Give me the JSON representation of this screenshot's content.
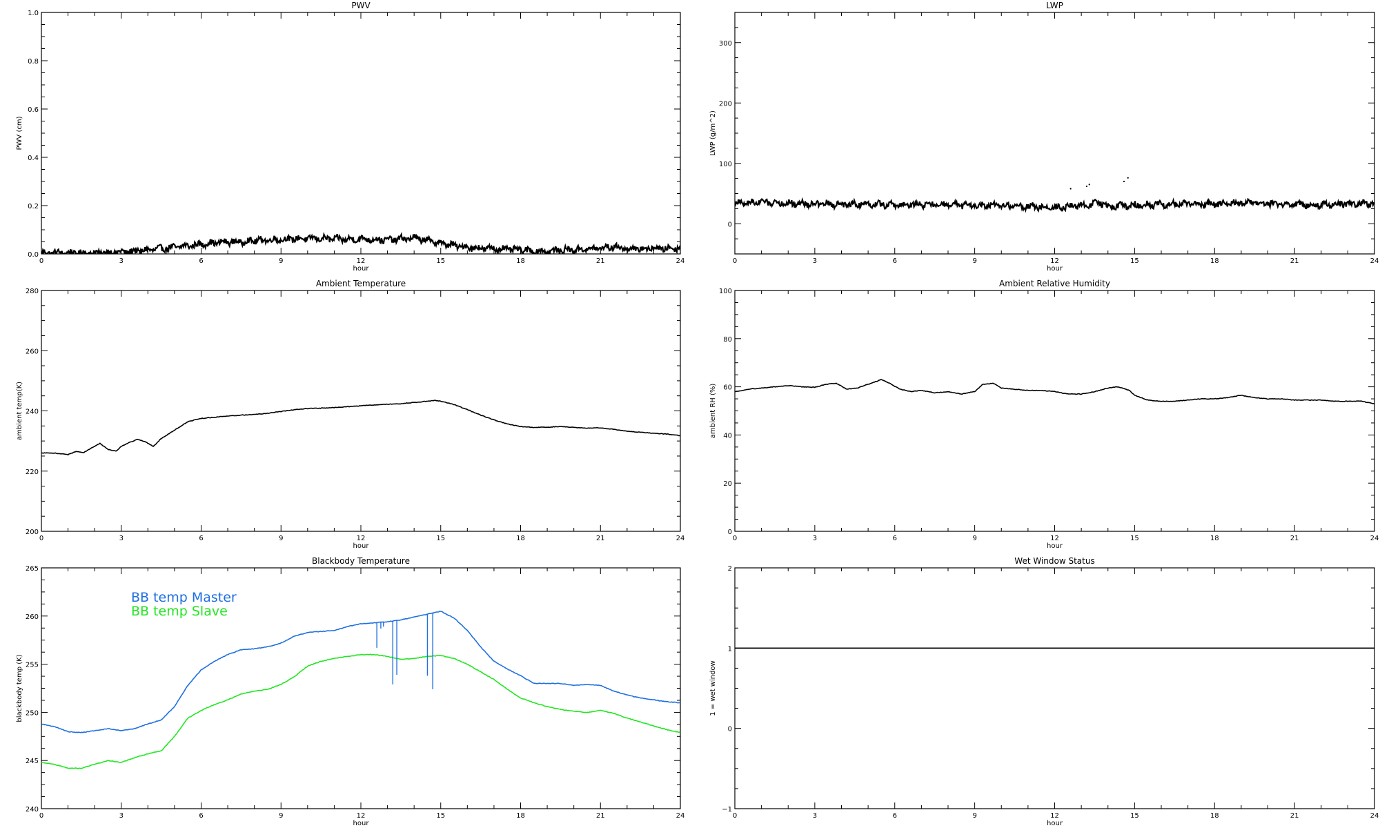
{
  "chart_data": [
    {
      "type": "line",
      "title": "PWV",
      "xlabel": "hour",
      "ylabel": "PWV (cm)",
      "xlim": [
        0,
        24
      ],
      "ylim": [
        0,
        1.0
      ],
      "xticks": [
        0,
        3,
        6,
        9,
        12,
        15,
        18,
        21,
        24
      ],
      "yticks": [
        0.0,
        0.2,
        0.4,
        0.6,
        0.8,
        1.0
      ],
      "ytick_labels": [
        "0.0",
        "0.2",
        "0.4",
        "0.6",
        "0.8",
        "1.0"
      ],
      "style": "noisy",
      "series": [
        {
          "color": "#000000",
          "x": [
            0,
            1,
            2,
            3,
            3.5,
            4,
            4.5,
            5,
            5.5,
            6,
            6.5,
            7,
            7.5,
            8,
            8.5,
            9,
            9.5,
            10,
            10.5,
            11,
            11.5,
            12,
            12.5,
            13,
            13.5,
            14,
            14.5,
            15,
            15.5,
            16,
            16.5,
            17,
            17.5,
            18,
            18.5,
            19,
            19.5,
            20,
            20.5,
            21,
            21.5,
            22,
            22.5,
            23,
            23.5,
            24
          ],
          "y": [
            0.005,
            0.004,
            0.004,
            0.008,
            0.012,
            0.016,
            0.022,
            0.028,
            0.034,
            0.04,
            0.046,
            0.05,
            0.05,
            0.055,
            0.058,
            0.06,
            0.062,
            0.064,
            0.064,
            0.062,
            0.06,
            0.062,
            0.06,
            0.058,
            0.062,
            0.066,
            0.056,
            0.045,
            0.035,
            0.028,
            0.024,
            0.022,
            0.02,
            0.016,
            0.012,
            0.01,
            0.016,
            0.018,
            0.02,
            0.024,
            0.03,
            0.022,
            0.02,
            0.024,
            0.022,
            0.026
          ]
        }
      ]
    },
    {
      "type": "line",
      "title": "LWP",
      "xlabel": "hour",
      "ylabel": "LWP (g/m^2)",
      "xlim": [
        0,
        24
      ],
      "ylim": [
        -50,
        350
      ],
      "xticks": [
        0,
        3,
        6,
        9,
        12,
        15,
        18,
        21,
        24
      ],
      "yticks": [
        0,
        100,
        200,
        300
      ],
      "ytick_labels": [
        "0",
        "100",
        "200",
        "300"
      ],
      "style": "noisy",
      "series": [
        {
          "color": "#000000",
          "x": [
            0,
            1,
            2,
            3,
            4,
            5,
            6,
            7,
            8,
            9,
            10,
            11,
            12,
            13,
            13.7,
            14,
            15,
            16,
            17,
            18,
            19,
            20,
            21,
            22,
            23,
            24
          ],
          "y": [
            34,
            36,
            34,
            33,
            32,
            33,
            31,
            32,
            31,
            30,
            30,
            29,
            27,
            30,
            35,
            29,
            31,
            32,
            33,
            32,
            35,
            33,
            32,
            32,
            33,
            33
          ]
        }
      ],
      "outlier_points": {
        "x": [
          12.6,
          13.2,
          13.3,
          14.6,
          14.75
        ],
        "y": [
          58,
          62,
          65,
          70,
          76
        ]
      }
    },
    {
      "type": "line",
      "title": "Ambient Temperature",
      "xlabel": "hour",
      "ylabel": "ambient temp(K)",
      "xlim": [
        0,
        24
      ],
      "ylim": [
        200,
        280
      ],
      "xticks": [
        0,
        3,
        6,
        9,
        12,
        15,
        18,
        21,
        24
      ],
      "yticks": [
        200,
        220,
        240,
        260,
        280
      ],
      "ytick_labels": [
        "200",
        "220",
        "240",
        "260",
        "280"
      ],
      "style": "line",
      "series": [
        {
          "color": "#000000",
          "x": [
            0,
            0.5,
            1,
            1.3,
            1.6,
            1.9,
            2.2,
            2.5,
            2.8,
            3,
            3.3,
            3.6,
            3.9,
            4.2,
            4.5,
            5,
            5.5,
            6,
            6.5,
            7,
            7.5,
            8,
            8.5,
            9,
            9.5,
            10,
            10.5,
            11,
            11.5,
            12,
            12.5,
            13,
            13.5,
            14,
            14.5,
            14.8,
            15,
            15.5,
            16,
            16.5,
            17,
            17.5,
            18,
            18.5,
            19,
            19.5,
            20,
            20.5,
            21,
            21.5,
            22,
            22.5,
            23,
            23.5,
            24
          ],
          "y": [
            226,
            226,
            225.5,
            226.5,
            226.2,
            227.8,
            229.2,
            227.2,
            226.6,
            228.2,
            229.5,
            230.5,
            229.8,
            228.2,
            230.8,
            233.6,
            236.4,
            237.5,
            237.9,
            238.3,
            238.6,
            238.8,
            239.2,
            239.8,
            240.4,
            240.8,
            240.9,
            241.1,
            241.4,
            241.7,
            242.0,
            242.2,
            242.4,
            242.8,
            243.2,
            243.5,
            243.2,
            242.1,
            240.4,
            238.6,
            237.0,
            235.7,
            234.8,
            234.5,
            234.6,
            234.8,
            234.5,
            234.3,
            234.4,
            233.9,
            233.2,
            232.9,
            232.6,
            232.3,
            231.8
          ]
        }
      ]
    },
    {
      "type": "line",
      "title": "Ambient Relative Humidity",
      "xlabel": "hour",
      "ylabel": "ambient RH (%)",
      "xlim": [
        0,
        24
      ],
      "ylim": [
        0,
        100
      ],
      "xticks": [
        0,
        3,
        6,
        9,
        12,
        15,
        18,
        21,
        24
      ],
      "yticks": [
        0,
        20,
        40,
        60,
        80,
        100
      ],
      "ytick_labels": [
        "0",
        "20",
        "40",
        "60",
        "80",
        "100"
      ],
      "style": "line",
      "series": [
        {
          "color": "#000000",
          "x": [
            0,
            0.5,
            1,
            1.5,
            2,
            2.5,
            3,
            3.4,
            3.8,
            4.2,
            4.6,
            5,
            5.5,
            5.8,
            6.2,
            6.6,
            7,
            7.5,
            8,
            8.5,
            9,
            9.3,
            9.7,
            10,
            10.5,
            11,
            11.5,
            12,
            12.5,
            13,
            13.5,
            14,
            14.4,
            14.8,
            15,
            15.5,
            16,
            16.5,
            17,
            17.5,
            18,
            18.5,
            19,
            19.5,
            20,
            20.5,
            21,
            21.5,
            22,
            22.5,
            23,
            23.5,
            24
          ],
          "y": [
            58,
            59,
            59.5,
            60,
            60.5,
            60,
            59.8,
            61,
            61.5,
            59,
            59.5,
            61,
            63,
            61.5,
            59,
            58,
            58.5,
            57.5,
            58,
            57,
            58,
            61,
            61.5,
            59.5,
            59,
            58.5,
            58.5,
            58,
            57,
            57,
            58,
            59.5,
            60,
            58.5,
            56.5,
            54.5,
            54,
            54,
            54.5,
            55,
            55,
            55.5,
            56.5,
            55.5,
            55,
            55,
            54.5,
            54.5,
            54.5,
            54,
            54,
            54,
            53
          ]
        }
      ]
    },
    {
      "type": "line",
      "title": "Blackbody Temperature",
      "xlabel": "hour",
      "ylabel": "blackbody temp (K)",
      "xlim": [
        0,
        24
      ],
      "ylim": [
        240,
        265
      ],
      "xticks": [
        0,
        3,
        6,
        9,
        12,
        15,
        18,
        21,
        24
      ],
      "yticks": [
        240,
        245,
        250,
        255,
        260,
        265
      ],
      "ytick_labels": [
        "240",
        "245",
        "250",
        "255",
        "260",
        "265"
      ],
      "style": "line",
      "legend_position": "top-left",
      "series": [
        {
          "name": "BB temp Master",
          "color": "#1f6fe0",
          "x": [
            0,
            0.5,
            1,
            1.5,
            2,
            2.5,
            3,
            3.5,
            4,
            4.5,
            5,
            5.5,
            6,
            6.5,
            7,
            7.5,
            8,
            8.5,
            9,
            9.5,
            10,
            10.5,
            11,
            11.5,
            12,
            12.5,
            13,
            13.5,
            14,
            14.5,
            15,
            15.5,
            16,
            16.5,
            17,
            17.5,
            18,
            18.5,
            19,
            19.5,
            20,
            20.5,
            21,
            21.5,
            22,
            22.5,
            23,
            23.5,
            24
          ],
          "y": [
            248.8,
            248.5,
            248.0,
            247.9,
            248.1,
            248.3,
            248.1,
            248.3,
            248.8,
            249.2,
            250.6,
            252.8,
            254.4,
            255.3,
            256.0,
            256.5,
            256.6,
            256.8,
            257.2,
            257.9,
            258.3,
            258.4,
            258.5,
            258.9,
            259.2,
            259.3,
            259.4,
            259.6,
            259.9,
            260.2,
            260.5,
            259.8,
            258.5,
            256.8,
            255.3,
            254.5,
            253.8,
            253.0,
            253.0,
            253.0,
            252.8,
            252.9,
            252.8,
            252.2,
            251.8,
            251.5,
            251.3,
            251.1,
            251.0
          ]
        },
        {
          "name": "BB temp Slave",
          "color": "#22e622",
          "x": [
            0,
            0.5,
            1,
            1.5,
            2,
            2.5,
            3,
            3.5,
            4,
            4.5,
            5,
            5.5,
            6,
            6.5,
            7,
            7.5,
            8,
            8.5,
            9,
            9.5,
            10,
            10.5,
            11,
            11.5,
            12,
            12.5,
            13,
            13.5,
            14,
            14.5,
            15,
            15.5,
            16,
            16.5,
            17,
            17.5,
            18,
            18.5,
            19,
            19.5,
            20,
            20.5,
            21,
            21.5,
            22,
            22.5,
            23,
            23.5,
            24
          ],
          "y": [
            244.8,
            244.6,
            244.2,
            244.2,
            244.6,
            245.0,
            244.8,
            245.3,
            245.7,
            246.0,
            247.5,
            249.4,
            250.2,
            250.8,
            251.3,
            251.9,
            252.2,
            252.4,
            252.9,
            253.7,
            254.8,
            255.3,
            255.6,
            255.8,
            256.0,
            256.0,
            255.8,
            255.5,
            255.6,
            255.8,
            255.9,
            255.6,
            255.0,
            254.2,
            253.4,
            252.4,
            251.5,
            251.0,
            250.6,
            250.3,
            250.1,
            250.0,
            250.2,
            249.9,
            249.4,
            249.0,
            248.6,
            248.2,
            247.9
          ]
        }
      ],
      "master_spikes": {
        "x": [
          12.6,
          12.75,
          12.85,
          13.2,
          13.35,
          14.5,
          14.7
        ],
        "y": [
          256.7,
          258.7,
          258.9,
          252.9,
          253.9,
          253.8,
          252.4
        ]
      }
    },
    {
      "type": "line",
      "title": "Wet Window Status",
      "xlabel": "hour",
      "ylabel": "1 = wet window",
      "xlim": [
        0,
        24
      ],
      "ylim": [
        -1,
        2
      ],
      "xticks": [
        0,
        3,
        6,
        9,
        12,
        15,
        18,
        21,
        24
      ],
      "yticks": [
        -1,
        0,
        1,
        2
      ],
      "ytick_labels": [
        "−1",
        "0",
        "1",
        "2"
      ],
      "style": "line",
      "series": [
        {
          "color": "#000000",
          "x": [
            0,
            24
          ],
          "y": [
            1,
            1
          ]
        }
      ]
    }
  ]
}
